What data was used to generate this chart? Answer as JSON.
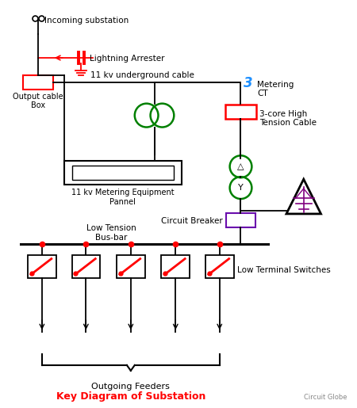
{
  "title": "Key Diagram of Substation",
  "subtitle": "Circuit Globe",
  "bg_color": "#ffffff",
  "labels": {
    "incoming": "Incoming substation",
    "lightning": "Lightning Arrester",
    "underground": "11 kv underground cable",
    "output_box": "Output cable\nBox",
    "metering_ct": "Metering\nCT",
    "ht_cable": "3-core High\nTension Cable",
    "metering_panel": "11 kv Metering Equipment\nPannel",
    "lt_busbar": "Low Tension\nBus-bar",
    "circuit_breaker": "Circuit Breaker",
    "lt_switches": "Low Terminal Switches",
    "outgoing": "Outgoing Feeders"
  }
}
